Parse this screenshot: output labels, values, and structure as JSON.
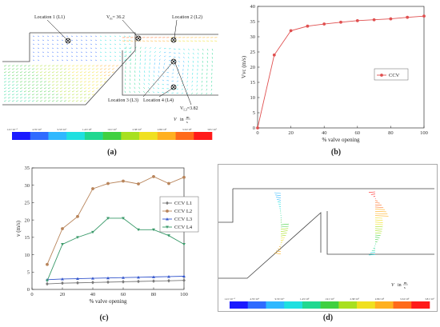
{
  "captions": {
    "a": "(a)",
    "b": "(b)",
    "c": "(c)",
    "d": "(d)"
  },
  "panel_a": {
    "labels": {
      "L1": "Location 1 (L1)",
      "L2": "Location 2 (L2)",
      "L3": "Location 3 (L3)",
      "L4": "Location 4 (L4)"
    },
    "v_max_label": "V",
    "v_max_sub": "m",
    "v_max_value": "= 36.2",
    "v_l3_label": "V",
    "v_l3_sub": "L3",
    "v_l3_value": "=3.82",
    "unit_v": "V",
    "unit_in": "in",
    "unit_num": "m",
    "unit_den": "s",
    "colorbar_ticks": [
      "1.21×10⁻⁴",
      "4.76×10⁰",
      "9.53×10⁰",
      "1.43×10¹",
      "1.91×10¹",
      "2.38×10¹",
      "2.86×10¹",
      "3.34×10¹",
      "3.81×10¹"
    ],
    "colorbar_colors": [
      "#1a1aff",
      "#2f6bff",
      "#2fb8ff",
      "#1fe0e0",
      "#20d890",
      "#40d040",
      "#a8e020",
      "#f0e020",
      "#ffb020",
      "#ff6a1a",
      "#ff1a1a"
    ]
  },
  "panel_d": {
    "unit_v": "V",
    "unit_in": "in",
    "unit_num": "m",
    "unit_den": "s",
    "colorbar_ticks": [
      "1.21×10⁻⁴",
      "4.76×10⁰",
      "9.53×10⁰",
      "1.43×10¹",
      "1.91×10¹",
      "2.38×10¹",
      "2.86×10¹",
      "3.34×10¹",
      "3.81×10¹"
    ],
    "colorbar_colors": [
      "#1a1aff",
      "#2f6bff",
      "#2fb8ff",
      "#1fe0e0",
      "#20d890",
      "#40d040",
      "#a8e020",
      "#f0e020",
      "#ffb020",
      "#ff6a1a",
      "#ff1a1a"
    ]
  },
  "chart_data": [
    {
      "type": "line",
      "panel": "b",
      "xlabel": "% valve opening",
      "ylabel": "Vvc (m/s)",
      "xlim": [
        0,
        100
      ],
      "ylim": [
        0,
        40
      ],
      "xticks": [
        0,
        20,
        40,
        60,
        80,
        100
      ],
      "yticks": [
        0,
        5,
        10,
        15,
        20,
        25,
        30,
        35,
        40
      ],
      "legend_position": "right",
      "series": [
        {
          "name": "CCV",
          "color": "#e05050",
          "x": [
            0,
            10,
            20,
            30,
            40,
            50,
            60,
            70,
            80,
            90,
            100
          ],
          "y": [
            0,
            24.0,
            32.0,
            33.5,
            34.2,
            34.8,
            35.3,
            35.6,
            35.9,
            36.4,
            36.8
          ]
        }
      ]
    },
    {
      "type": "line",
      "panel": "c",
      "xlabel": "% valve opening",
      "ylabel": "v (m/s)",
      "xlim": [
        0,
        100
      ],
      "ylim": [
        0,
        35
      ],
      "xticks": [
        0,
        20,
        40,
        60,
        80,
        100
      ],
      "yticks": [
        0,
        5,
        10,
        15,
        20,
        25,
        30,
        35
      ],
      "legend_position": "right",
      "series": [
        {
          "name": "CCV L1",
          "color": "#7a7a7a",
          "marker": "diamond",
          "x": [
            10,
            20,
            30,
            40,
            50,
            60,
            70,
            80,
            90,
            100
          ],
          "y": [
            1.6,
            1.8,
            1.9,
            2.0,
            2.1,
            2.2,
            2.3,
            2.4,
            2.5,
            2.6
          ]
        },
        {
          "name": "CCV L2",
          "color": "#b8845a",
          "marker": "circle",
          "x": [
            10,
            20,
            30,
            40,
            50,
            60,
            70,
            80,
            90,
            100
          ],
          "y": [
            7.2,
            17.5,
            21.0,
            29.0,
            30.5,
            31.2,
            30.4,
            32.5,
            30.5,
            32.3
          ]
        },
        {
          "name": "CCV L3",
          "color": "#3355cc",
          "marker": "triangle-up",
          "x": [
            10,
            20,
            30,
            40,
            50,
            60,
            70,
            80,
            90,
            100
          ],
          "y": [
            2.8,
            3.0,
            3.1,
            3.2,
            3.3,
            3.4,
            3.5,
            3.6,
            3.7,
            3.8
          ]
        },
        {
          "name": "CCV L4",
          "color": "#3a9a6a",
          "marker": "triangle-down",
          "x": [
            10,
            20,
            30,
            40,
            50,
            60,
            70,
            80,
            90,
            100
          ],
          "y": [
            2.5,
            13.0,
            15.0,
            16.5,
            20.5,
            20.5,
            17.2,
            17.2,
            15.5,
            13.0
          ]
        }
      ]
    }
  ]
}
